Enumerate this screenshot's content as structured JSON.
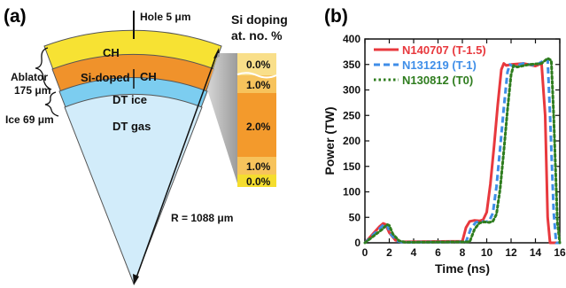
{
  "panel_a": {
    "label": "(a)",
    "hole_label": "Hole 5 μm",
    "doping_title_1": "Si doping",
    "doping_title_2": "at. no. %",
    "layer_ch": "CH",
    "layer_si_doped_a": "Si-doped",
    "layer_si_doped_b": "CH",
    "layer_dt_ice": "DT ice",
    "layer_dt_gas": "DT gas",
    "ablator_label_1": "Ablator",
    "ablator_label_2": "175 μm",
    "ice_label": "Ice 69 μm",
    "radius_label": "R = 1088 μm",
    "doping_levels": [
      "0.0%",
      "1.0%",
      "2.0%",
      "1.0%",
      "0.0%"
    ],
    "colors": {
      "ch": "#f7e233",
      "si_doped": "#f0922b",
      "dt_ice": "#7ccdf0",
      "dt_gas": "#d2ecfa",
      "strip_pale": "#f9df8a",
      "strip_light": "#f7c35c",
      "strip_orange": "#f39a2c",
      "strip_yellow": "#f5dd2e"
    }
  },
  "panel_b": {
    "label": "(b)"
  },
  "chart_data": {
    "type": "line",
    "xlabel": "Time (ns)",
    "ylabel": "Power (TW)",
    "xlim": [
      0,
      16
    ],
    "ylim": [
      0,
      400
    ],
    "xticks": [
      "0",
      "2",
      "4",
      "6",
      "8",
      "10",
      "12",
      "14",
      "16"
    ],
    "yticks": [
      "0",
      "50",
      "100",
      "150",
      "200",
      "250",
      "300",
      "350",
      "400"
    ],
    "legend_position": "top-left",
    "grid": false,
    "series": [
      {
        "name": "N140707 (T-1.5)",
        "color": "#e8383d",
        "style": "solid",
        "x": [
          0,
          1.2,
          1.5,
          1.7,
          2.0,
          2.5,
          3.0,
          8.0,
          8.3,
          8.6,
          9.0,
          9.4,
          9.7,
          10.0,
          10.3,
          10.6,
          10.9,
          11.2,
          11.4,
          11.6,
          12.0,
          13.0,
          14.0,
          14.5,
          14.8,
          15.0,
          15.2,
          16.0
        ],
        "y": [
          0,
          32,
          38,
          36,
          20,
          5,
          2,
          3,
          30,
          42,
          44,
          43,
          45,
          60,
          115,
          190,
          270,
          340,
          352,
          348,
          350,
          352,
          347,
          352,
          250,
          50,
          0,
          0
        ]
      },
      {
        "name": "N131219 (T-1)",
        "color": "#3f8ee8",
        "style": "dash",
        "x": [
          0,
          1.3,
          1.6,
          1.8,
          2.1,
          2.6,
          3.1,
          8.3,
          8.7,
          9.1,
          9.5,
          9.9,
          10.2,
          10.5,
          10.8,
          11.1,
          11.4,
          11.7,
          11.9,
          12.2,
          13.0,
          14.0,
          14.5,
          15.0,
          15.2,
          15.5,
          15.7,
          16.0
        ],
        "y": [
          0,
          30,
          37,
          35,
          18,
          4,
          1,
          2,
          28,
          40,
          42,
          41,
          43,
          58,
          110,
          185,
          265,
          335,
          350,
          346,
          352,
          348,
          355,
          360,
          250,
          60,
          0,
          0
        ]
      },
      {
        "name": "N130812 (T0)",
        "color": "#2f7d1f",
        "style": "dot",
        "x": [
          0,
          1.5,
          1.8,
          2.0,
          2.3,
          2.8,
          3.3,
          8.6,
          9.0,
          9.4,
          9.8,
          10.2,
          10.5,
          10.8,
          11.1,
          11.4,
          11.7,
          12.0,
          12.2,
          12.5,
          13.5,
          14.5,
          15.0,
          15.3,
          15.5,
          15.8,
          16.0
        ],
        "y": [
          0,
          28,
          36,
          34,
          17,
          4,
          1,
          2,
          27,
          39,
          41,
          40,
          42,
          56,
          105,
          180,
          260,
          330,
          348,
          345,
          350,
          352,
          362,
          358,
          250,
          40,
          0
        ]
      }
    ]
  }
}
